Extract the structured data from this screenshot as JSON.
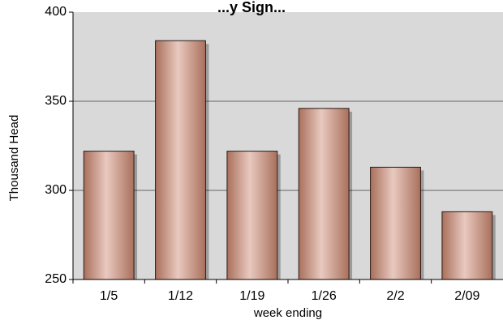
{
  "chart_data": {
    "type": "bar",
    "title": "...y Sign...",
    "xlabel": "week ending",
    "ylabel": "Thousand Head",
    "categories": [
      "1/5",
      "1/12",
      "1/19",
      "1/26",
      "2/2",
      "2/09"
    ],
    "values": [
      322,
      384,
      322,
      346,
      313,
      288
    ],
    "ylim": [
      250,
      400
    ],
    "yticks": [
      "250",
      "300",
      "350",
      "400"
    ],
    "grid": true,
    "legend": "none"
  },
  "colors": {
    "plot_background": "#d9d9d9",
    "bar_dark": "#a9705c",
    "bar_light": "#e9c9bf",
    "bar_outline": "#2b1a14",
    "gridline": "#8c8c8c"
  }
}
